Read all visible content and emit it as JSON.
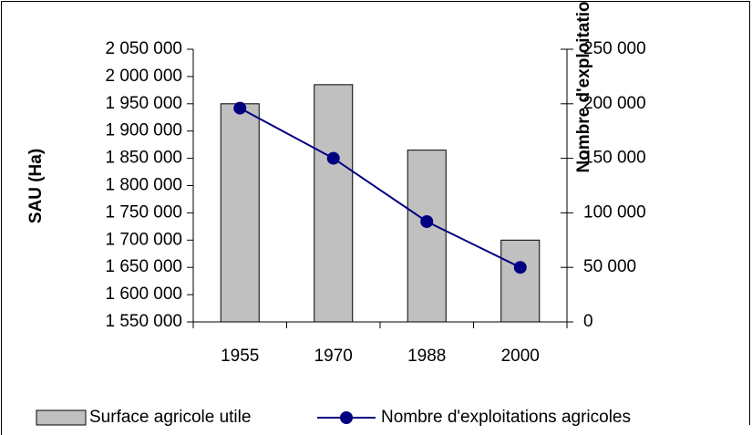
{
  "chart_data": {
    "type": "bar+line",
    "categories": [
      "1955",
      "1970",
      "1988",
      "2000"
    ],
    "series": [
      {
        "name": "Surface agricole utile",
        "type": "bar",
        "color": "#c0c0c0",
        "values": [
          1950000,
          1985000,
          1865000,
          1700000
        ]
      },
      {
        "name": "Nombre d'exploitations agricoles",
        "type": "line",
        "axis": "y2",
        "color": "#000080",
        "values": [
          196000,
          150000,
          92000,
          50000
        ]
      }
    ],
    "ylabel": "SAU (Ha)",
    "y2label": "Nombre d'exploitations agricoles",
    "ylim": [
      1550000,
      2050000
    ],
    "yticks": [
      {
        "value": 1550000,
        "label": "1 550 000"
      },
      {
        "value": 1600000,
        "label": "1 600 000"
      },
      {
        "value": 1650000,
        "label": "1 650 000"
      },
      {
        "value": 1700000,
        "label": "1 700 000"
      },
      {
        "value": 1750000,
        "label": "1 750 000"
      },
      {
        "value": 1800000,
        "label": "1 800 000"
      },
      {
        "value": 1850000,
        "label": "1 850 000"
      },
      {
        "value": 1900000,
        "label": "1 900 000"
      },
      {
        "value": 1950000,
        "label": "1 950 000"
      },
      {
        "value": 2000000,
        "label": "2 000 000"
      },
      {
        "value": 2050000,
        "label": "2 050 000"
      }
    ],
    "y2lim": [
      0,
      250000
    ],
    "y2ticks": [
      0,
      {
        "value": 50000,
        "label": "50 000"
      },
      {
        "value": 100000,
        "label": "100 000"
      },
      {
        "value": 150000,
        "label": "150 000"
      },
      {
        "value": 200000,
        "label": "200 000"
      },
      {
        "value": 250000,
        "label": "250 000"
      }
    ],
    "legend": "bottom",
    "grid": false
  }
}
